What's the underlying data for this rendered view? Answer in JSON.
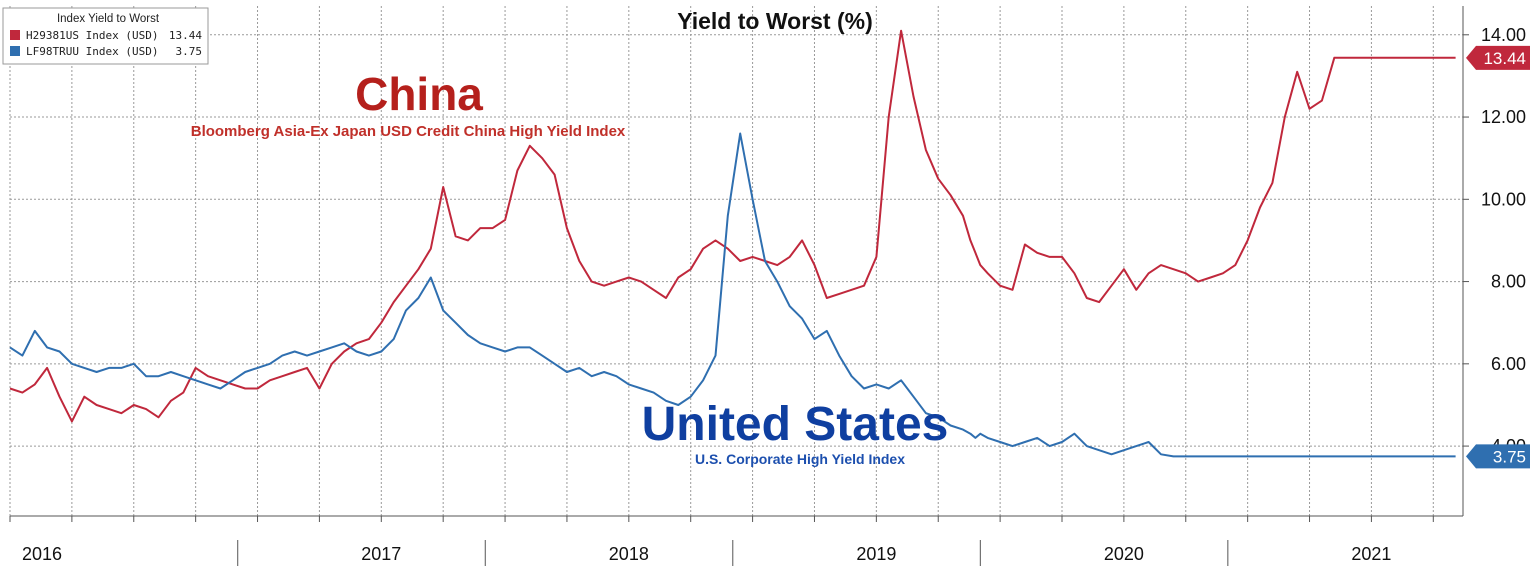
{
  "chart_data": {
    "type": "line",
    "title": "Yield to Worst (%)",
    "legend": {
      "title": "Index Yield to Worst",
      "placement": "top-left",
      "entries": [
        {
          "label": "H29381US Index (USD)",
          "value": "13.44",
          "color": "#c0283c"
        },
        {
          "label": "LF98TRUU Index (USD)",
          "value": "3.75",
          "color": "#2f6fb0"
        }
      ]
    },
    "yaxis": {
      "side": "right",
      "ylim": [
        2.3,
        14.7
      ],
      "ticks": [
        "14.00",
        "12.00",
        "10.00",
        "8.00",
        "6.00",
        "4.00"
      ]
    },
    "xaxis": {
      "xlim": [
        2016.0,
        2021.87
      ],
      "labels": [
        "2016",
        "2017",
        "2018",
        "2019",
        "2020",
        "2021"
      ]
    },
    "grid": true,
    "annotations": {
      "china_title": "China",
      "china_subtitle": "Bloomberg Asia-Ex Japan USD Credit China High Yield Index",
      "us_title": "United States",
      "us_subtitle": "U.S. Corporate High Yield Index"
    },
    "last_values": [
      {
        "value": "13.44",
        "color": "#c0283c"
      },
      {
        "value": "3.75",
        "color": "#2f6fb0"
      }
    ],
    "series": [
      {
        "color": "#c0283c",
        "x": [
          2016.0,
          2016.05,
          2016.1,
          2016.15,
          2016.2,
          2016.25,
          2016.3,
          2016.35,
          2016.4,
          2016.45,
          2016.5,
          2016.55,
          2016.6,
          2016.65,
          2016.7,
          2016.75,
          2016.8,
          2016.85,
          2016.9,
          2016.95,
          2017.0,
          2017.05,
          2017.1,
          2017.15,
          2017.2,
          2017.25,
          2017.3,
          2017.35,
          2017.4,
          2017.45,
          2017.5,
          2017.55,
          2017.6,
          2017.65,
          2017.7,
          2017.75,
          2017.8,
          2017.85,
          2017.9,
          2017.95,
          2018.0,
          2018.05,
          2018.1,
          2018.15,
          2018.2,
          2018.25,
          2018.3,
          2018.35,
          2018.4,
          2018.45,
          2018.5,
          2018.55,
          2018.6,
          2018.65,
          2018.7,
          2018.75,
          2018.8,
          2018.85,
          2018.9,
          2018.95,
          2019.0,
          2019.05,
          2019.1,
          2019.15,
          2019.2,
          2019.25,
          2019.3,
          2019.35,
          2019.4,
          2019.45,
          2019.5,
          2019.55,
          2019.6,
          2019.65,
          2019.7,
          2019.75,
          2019.8,
          2019.85,
          2019.88,
          2019.9,
          2019.92,
          2019.95,
          2020.0,
          2020.05,
          2020.1,
          2020.15,
          2020.2,
          2020.25,
          2020.3,
          2020.35,
          2020.4,
          2020.45,
          2020.5,
          2020.55,
          2020.6,
          2020.65,
          2020.7,
          2020.75,
          2020.8,
          2020.85,
          2020.9,
          2020.95,
          2021.0,
          2021.05,
          2021.1,
          2021.15,
          2021.2,
          2021.25,
          2021.3,
          2021.35,
          2021.4,
          2021.45,
          2021.5,
          2021.55,
          2021.6,
          2021.65,
          2021.7,
          2021.75,
          2021.8,
          2021.84
        ],
        "values": [
          5.4,
          5.3,
          5.5,
          5.9,
          5.2,
          4.6,
          5.2,
          5.0,
          4.9,
          4.8,
          5.0,
          4.9,
          4.7,
          5.1,
          5.3,
          5.9,
          5.7,
          5.6,
          5.5,
          5.4,
          5.4,
          5.6,
          5.7,
          5.8,
          5.9,
          5.4,
          6.0,
          6.3,
          6.5,
          6.6,
          7.0,
          7.5,
          7.9,
          8.3,
          8.8,
          10.3,
          9.1,
          9.0,
          9.3,
          9.3,
          9.5,
          10.7,
          11.3,
          11.0,
          10.6,
          9.3,
          8.5,
          8.0,
          7.9,
          8.0,
          8.1,
          8.0,
          7.8,
          7.6,
          8.1,
          8.3,
          8.8,
          9.0,
          8.8,
          8.5,
          8.6,
          8.5,
          8.4,
          8.6,
          9.0,
          8.4,
          7.6,
          7.7,
          7.8,
          7.9,
          8.6,
          12.0,
          14.1,
          12.5,
          11.2,
          10.5,
          10.1,
          9.6,
          9.0,
          8.7,
          8.4,
          8.2,
          7.9,
          7.8,
          8.9,
          8.7,
          8.6,
          8.6,
          8.2,
          7.6,
          7.5,
          7.9,
          8.3,
          7.8,
          8.2,
          8.4,
          8.3,
          8.2,
          8.0,
          8.1,
          8.2,
          8.4,
          9.0,
          9.8,
          10.4,
          12.0,
          13.1,
          12.2,
          12.4,
          13.44,
          13.44,
          13.44,
          13.44,
          13.44,
          13.44,
          13.44,
          13.44,
          13.44,
          13.44,
          13.44
        ]
      },
      {
        "color": "#2f6fb0",
        "x": [
          2016.0,
          2016.05,
          2016.1,
          2016.15,
          2016.2,
          2016.25,
          2016.3,
          2016.35,
          2016.4,
          2016.45,
          2016.5,
          2016.55,
          2016.6,
          2016.65,
          2016.7,
          2016.75,
          2016.8,
          2016.85,
          2016.9,
          2016.95,
          2017.0,
          2017.05,
          2017.1,
          2017.15,
          2017.2,
          2017.25,
          2017.3,
          2017.35,
          2017.4,
          2017.45,
          2017.5,
          2017.55,
          2017.6,
          2017.65,
          2017.7,
          2017.75,
          2017.8,
          2017.85,
          2017.9,
          2017.95,
          2018.0,
          2018.05,
          2018.1,
          2018.15,
          2018.2,
          2018.25,
          2018.3,
          2018.35,
          2018.4,
          2018.45,
          2018.5,
          2018.55,
          2018.6,
          2018.65,
          2018.7,
          2018.75,
          2018.8,
          2018.85,
          2018.9,
          2018.95,
          2019.0,
          2019.05,
          2019.1,
          2019.15,
          2019.2,
          2019.25,
          2019.3,
          2019.35,
          2019.4,
          2019.45,
          2019.5,
          2019.55,
          2019.6,
          2019.65,
          2019.7,
          2019.75,
          2019.8,
          2019.85,
          2019.88,
          2019.9,
          2019.92,
          2019.95,
          2020.0,
          2020.05,
          2020.1,
          2020.15,
          2020.2,
          2020.25,
          2020.3,
          2020.35,
          2020.4,
          2020.45,
          2020.5,
          2020.55,
          2020.6,
          2020.65,
          2020.7,
          2020.75,
          2020.8,
          2020.85,
          2020.9,
          2020.95,
          2021.0,
          2021.05,
          2021.1,
          2021.15,
          2021.2,
          2021.25,
          2021.3,
          2021.35,
          2021.4,
          2021.45,
          2021.5,
          2021.55,
          2021.6,
          2021.65,
          2021.7,
          2021.75,
          2021.8,
          2021.84
        ],
        "values": [
          6.4,
          6.2,
          6.8,
          6.4,
          6.3,
          6.0,
          5.9,
          5.8,
          5.9,
          5.9,
          6.0,
          5.7,
          5.7,
          5.8,
          5.7,
          5.6,
          5.5,
          5.4,
          5.6,
          5.8,
          5.9,
          6.0,
          6.2,
          6.3,
          6.2,
          6.3,
          6.4,
          6.5,
          6.3,
          6.2,
          6.3,
          6.6,
          7.3,
          7.6,
          8.1,
          7.3,
          7.0,
          6.7,
          6.5,
          6.4,
          6.3,
          6.4,
          6.4,
          6.2,
          6.0,
          5.8,
          5.9,
          5.7,
          5.8,
          5.7,
          5.5,
          5.4,
          5.3,
          5.1,
          5.0,
          5.2,
          5.6,
          6.2,
          9.6,
          11.6,
          10.0,
          8.5,
          8.0,
          7.4,
          7.1,
          6.6,
          6.8,
          6.2,
          5.7,
          5.4,
          5.5,
          5.4,
          5.6,
          5.2,
          4.8,
          4.7,
          4.5,
          4.4,
          4.3,
          4.2,
          4.3,
          4.2,
          4.1,
          4.0,
          4.1,
          4.2,
          4.0,
          4.1,
          4.3,
          4.0,
          3.9,
          3.8,
          3.9,
          4.0,
          4.1,
          3.8,
          3.75,
          3.75,
          3.75,
          3.75,
          3.75,
          3.75,
          3.75,
          3.75,
          3.75,
          3.75,
          3.75,
          3.75,
          3.75,
          3.75,
          3.75,
          3.75,
          3.75,
          3.75,
          3.75,
          3.75,
          3.75,
          3.75,
          3.75,
          3.75
        ]
      }
    ]
  }
}
